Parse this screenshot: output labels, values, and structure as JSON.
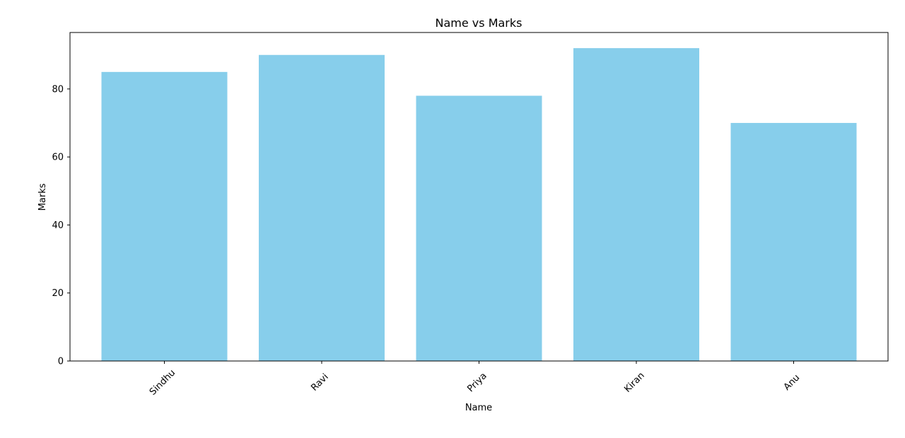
{
  "chart_data": {
    "type": "bar",
    "title": "Name vs Marks",
    "xlabel": "Name",
    "ylabel": "Marks",
    "categories": [
      "Sindhu",
      "Ravi",
      "Priya",
      "Kiran",
      "Anu"
    ],
    "values": [
      85,
      90,
      78,
      92,
      70
    ],
    "ylim": [
      0,
      96.6
    ],
    "yticks": [
      0,
      20,
      40,
      60,
      80
    ],
    "x_tick_rotation_deg": 45,
    "bar_color": "#87CEEB",
    "grid": false,
    "legend": "none"
  }
}
